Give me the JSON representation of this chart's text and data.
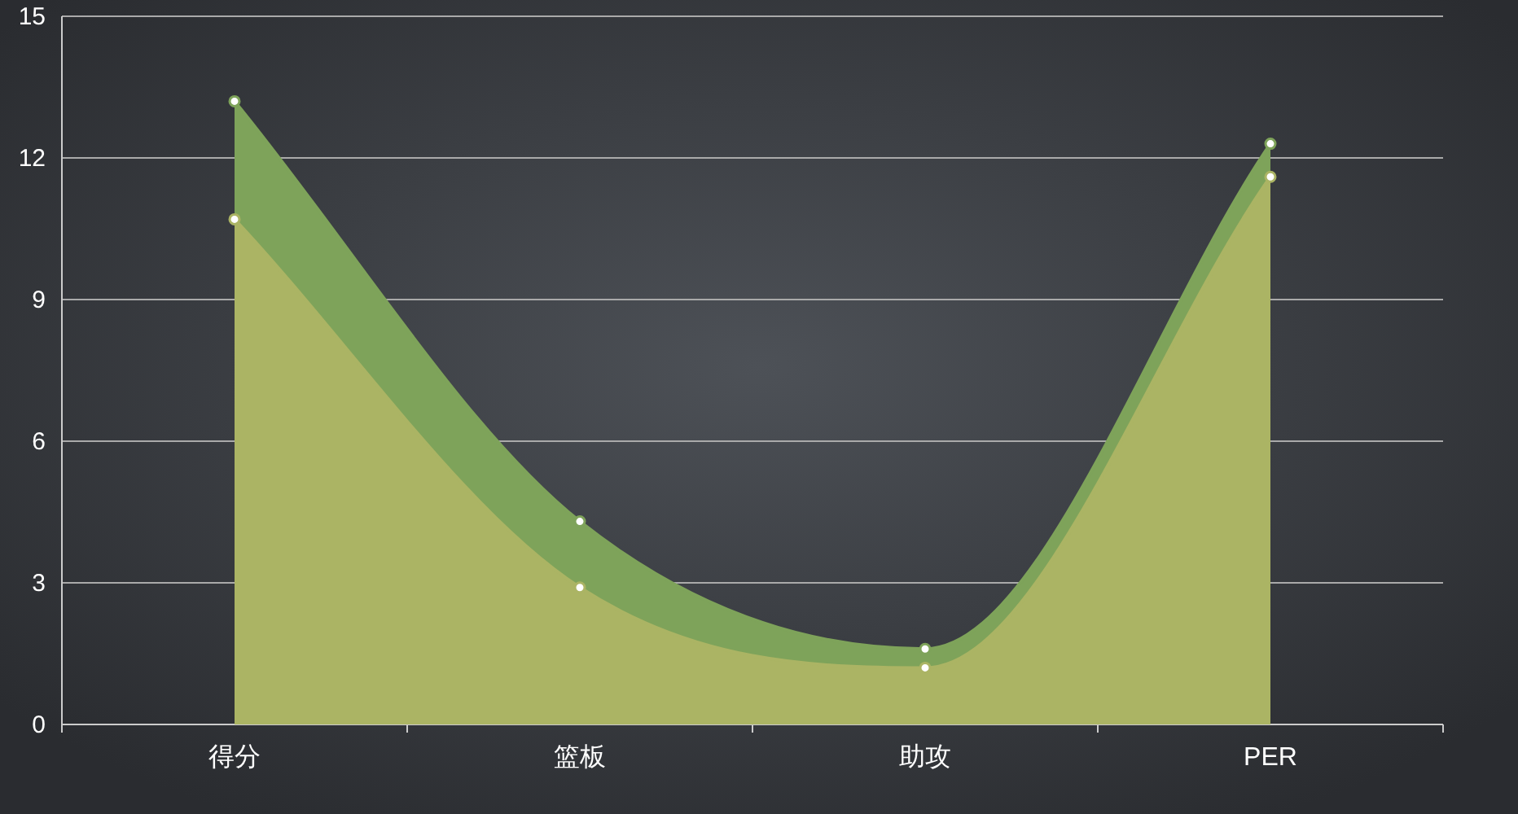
{
  "chart_data": {
    "type": "area",
    "categories": [
      "得分",
      "篮板",
      "助攻",
      "PER"
    ],
    "series": [
      {
        "color": "#7ea35a",
        "values": [
          13.2,
          4.3,
          1.6,
          12.3
        ]
      },
      {
        "color": "#abb464",
        "values": [
          10.7,
          2.9,
          1.2,
          11.6
        ]
      }
    ],
    "ylim": [
      0,
      15
    ],
    "yticks": [
      0,
      3,
      6,
      9,
      12,
      15
    ],
    "grid": "y",
    "marker": "circle"
  }
}
